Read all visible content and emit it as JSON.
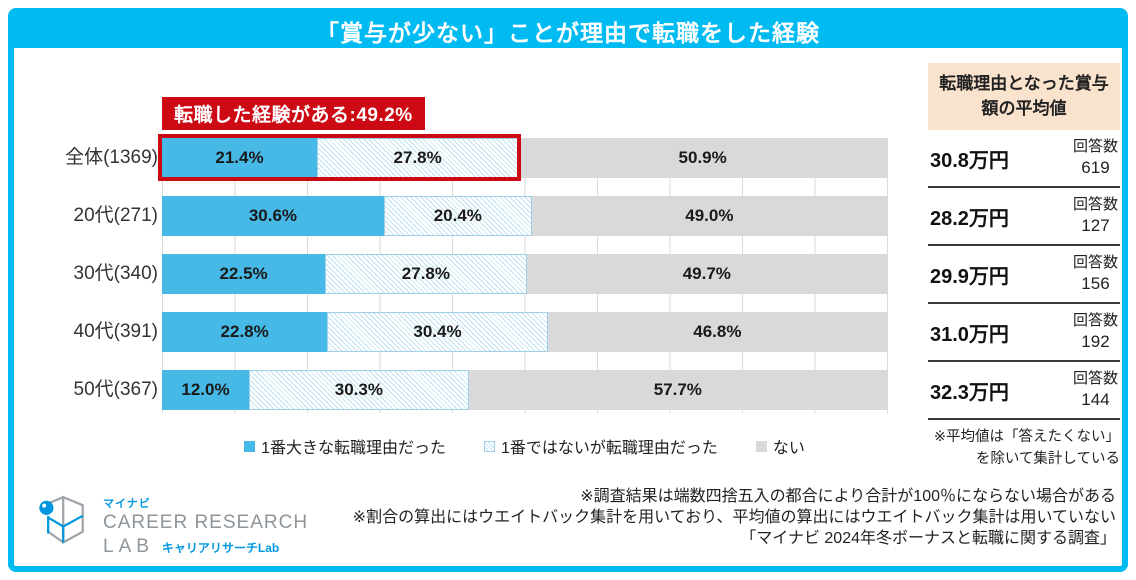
{
  "title": "「賞与が少ない」ことが理由で転職をした経験",
  "chart_data": {
    "type": "bar",
    "subtype": "horizontal-stacked",
    "title": "「賞与が少ない」ことが理由で転職をした経験",
    "categories": [
      "全体(1369)",
      "20代(271)",
      "30代(340)",
      "40代(391)",
      "50代(367)"
    ],
    "series": [
      {
        "name": "1番大きな転職理由だった",
        "values": [
          21.4,
          30.6,
          22.5,
          22.8,
          12.0
        ]
      },
      {
        "name": "1番ではないが転職理由だった",
        "values": [
          27.8,
          20.4,
          27.8,
          30.4,
          30.3
        ]
      },
      {
        "name": "ない",
        "values": [
          50.9,
          49.0,
          49.7,
          46.8,
          57.7
        ]
      }
    ],
    "annotation": "転職した経験がある:49.2%",
    "highlight": {
      "row": 0,
      "series": [
        0,
        1
      ],
      "combined_percent": 49.2
    },
    "xlim": [
      0,
      100
    ],
    "gridline_interval": 10,
    "grid": true,
    "legend_position": "bottom",
    "value_suffix": "%"
  },
  "side_table": {
    "header": "転職理由となった賞与額の平均値",
    "rows": [
      {
        "value": "30.8万円",
        "count_label": "回答数",
        "count": "619"
      },
      {
        "value": "28.2万円",
        "count_label": "回答数",
        "count": "127"
      },
      {
        "value": "29.9万円",
        "count_label": "回答数",
        "count": "156"
      },
      {
        "value": "31.0万円",
        "count_label": "回答数",
        "count": "192"
      },
      {
        "value": "32.3万円",
        "count_label": "回答数",
        "count": "144"
      }
    ],
    "note": "※平均値は「答えたくない」を除いて集計している"
  },
  "footer": {
    "notes": [
      "※調査結果は端数四捨五入の都合により合計が100％にならない場合がある",
      "※割合の算出にはウエイトバック集計を用いており、平均値の算出にはウエイトバック集計は用いていない",
      "「マイナビ 2024年冬ボーナスと転職に関する調査」"
    ],
    "logo": {
      "brand": "マイナビ",
      "line1": "CAREER RESEARCH",
      "line2": "LAB",
      "sub": "キャリアリサーチLab"
    }
  },
  "colors": {
    "accent": "#00BBF2",
    "bar_blue": "#46B9E6",
    "hatch_blue": "#BFE2F0",
    "hatch_border": "#9FD0E8",
    "gray_segment": "#D9D9D9",
    "highlight_red": "#CD0A14",
    "table_header_bg": "#FAE3CD",
    "grid_line": "#DADADA",
    "logo_blue": "#0096E0",
    "logo_gray": "#9EA4AA"
  }
}
